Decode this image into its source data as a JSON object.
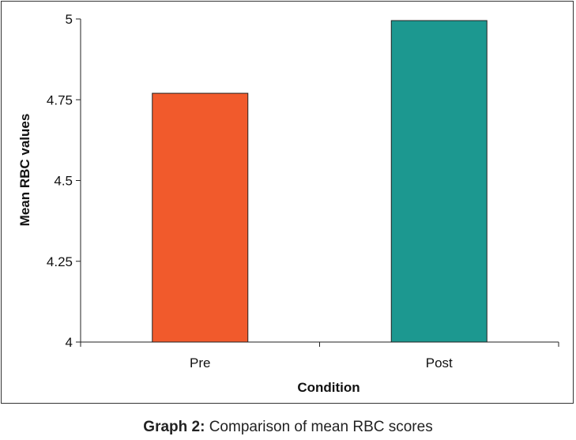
{
  "chart_data": {
    "type": "bar",
    "categories": [
      "Pre",
      "Post"
    ],
    "values": [
      4.77,
      4.995
    ],
    "colors": [
      "#f15a2c",
      "#1c9890"
    ],
    "xlabel": "Condition",
    "ylabel": "Mean RBC values",
    "ylim": [
      4,
      5
    ],
    "yticks": [
      "4",
      "4.25",
      "4.5",
      "4.75",
      "5"
    ],
    "ytick_values": [
      4,
      4.25,
      4.5,
      4.75,
      5
    ],
    "grid": false
  },
  "caption": {
    "label": "Graph 2:",
    "text": " Comparison of mean RBC scores"
  }
}
